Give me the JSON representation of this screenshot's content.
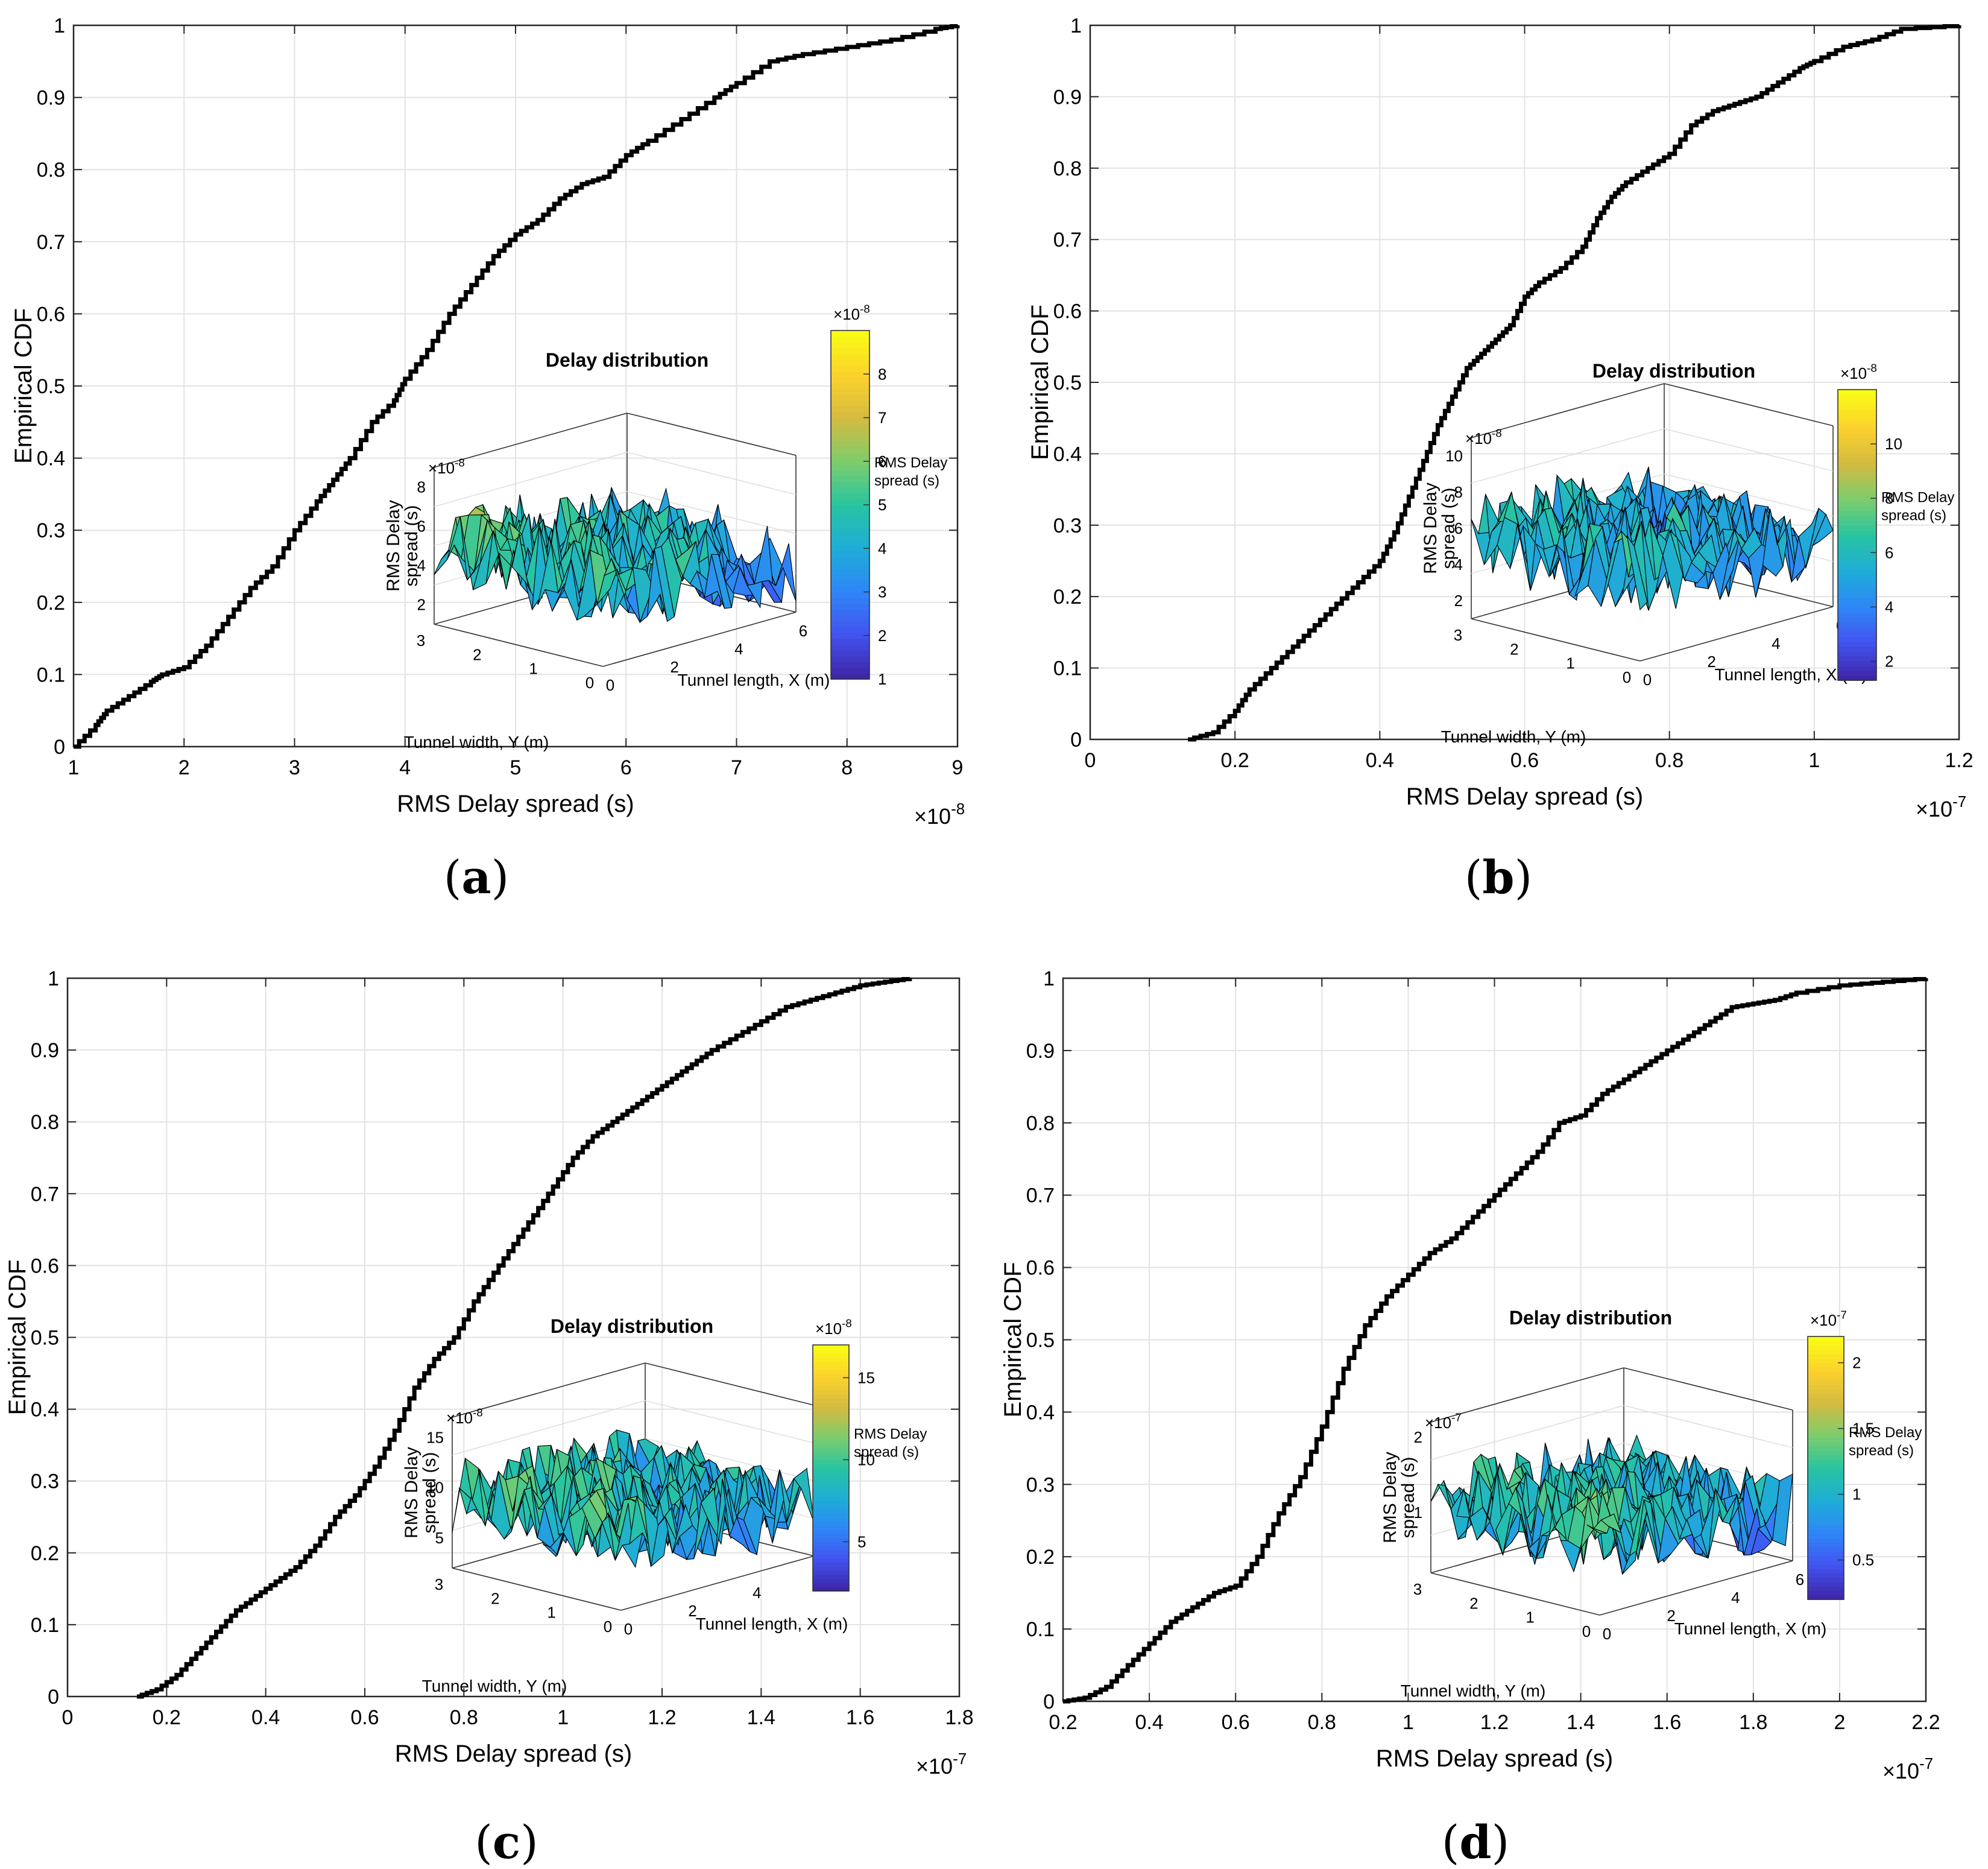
{
  "figure": {
    "captions": [
      {
        "paren_open": "(",
        "letter": "a",
        "paren_close": ")"
      },
      {
        "paren_open": "(",
        "letter": "b",
        "paren_close": ")"
      },
      {
        "paren_open": "(",
        "letter": "c",
        "paren_close": ")"
      },
      {
        "paren_open": "(",
        "letter": "d",
        "paren_close": ")"
      }
    ]
  },
  "colors": {
    "cdf_line": "#000000",
    "grid": "#e3e3e3",
    "axis": "#262626",
    "colormap": [
      "#3e26a8",
      "#4254f0",
      "#2e87f7",
      "#1fadd6",
      "#28c4a1",
      "#7dcd6d",
      "#d3bb41",
      "#fbd12d",
      "#f9fb15"
    ],
    "surface_edge": "#000000"
  },
  "chart_data": [
    {
      "type": "line",
      "panel": "a",
      "title": "",
      "xlabel": "RMS Delay spread (s)",
      "ylabel": "Empirical CDF",
      "x_exponent": "×10",
      "x_exponent_power": "-8",
      "xlim": [
        1,
        9
      ],
      "ylim": [
        0,
        1
      ],
      "x_ticks": [
        1,
        2,
        3,
        4,
        5,
        6,
        7,
        8,
        9
      ],
      "y_ticks": [
        0,
        0.1,
        0.2,
        0.3,
        0.4,
        0.5,
        0.6,
        0.7,
        0.8,
        0.9,
        1
      ],
      "grid": true,
      "series": [
        {
          "name": "CDF",
          "x": [
            1.0,
            1.2,
            1.3,
            1.5,
            1.7,
            1.8,
            2.0,
            2.2,
            2.4,
            2.6,
            2.8,
            3.0,
            3.2,
            3.35,
            3.5,
            3.7,
            3.9,
            4.0,
            4.2,
            4.4,
            4.6,
            4.8,
            5.0,
            5.2,
            5.4,
            5.6,
            5.8,
            6.0,
            6.2,
            6.5,
            6.8,
            7.0,
            7.3,
            7.6,
            8.0,
            8.4,
            8.8,
            9.0
          ],
          "values": [
            0.0,
            0.03,
            0.05,
            0.07,
            0.09,
            0.1,
            0.11,
            0.14,
            0.18,
            0.22,
            0.25,
            0.3,
            0.34,
            0.37,
            0.4,
            0.45,
            0.48,
            0.51,
            0.55,
            0.6,
            0.64,
            0.68,
            0.71,
            0.73,
            0.76,
            0.78,
            0.79,
            0.82,
            0.84,
            0.87,
            0.9,
            0.92,
            0.95,
            0.96,
            0.97,
            0.98,
            0.995,
            1.0
          ]
        }
      ],
      "inset": {
        "title": "Delay distribution",
        "zlabel": "RMS Delay spread (s)",
        "zlabel_lines": [
          "RMS Delay",
          "spread (s)"
        ],
        "xlabel": "Tunnel length, X (m)",
        "ylabel": "Tunnel width, Y (m)",
        "z_exponent": "×10",
        "z_exponent_power": "-8",
        "z_ticks": [
          "2",
          "4",
          "6",
          "8"
        ],
        "z_tick_values": [
          2,
          4,
          6,
          8
        ],
        "zlim": [
          1,
          9
        ],
        "x_ticks": [
          "0",
          "2",
          "4",
          "6"
        ],
        "y_ticks": [
          "0",
          "1",
          "2",
          "3"
        ],
        "colorbar": {
          "label_lines": [
            "RMS Delay",
            "spread (s)"
          ],
          "exponent": "×10",
          "exponent_power": "-8",
          "range": [
            1,
            9
          ],
          "ticks": [
            "1",
            "2",
            "3",
            "4",
            "5",
            "6",
            "7",
            "8"
          ],
          "tick_values": [
            1,
            2,
            3,
            4,
            5,
            6,
            7,
            8
          ]
        }
      }
    },
    {
      "type": "line",
      "panel": "b",
      "title": "",
      "xlabel": "RMS Delay spread (s)",
      "ylabel": "Empirical CDF",
      "x_exponent": "×10",
      "x_exponent_power": "-7",
      "xlim": [
        0,
        1.2
      ],
      "ylim": [
        0,
        1
      ],
      "x_ticks": [
        0,
        0.2,
        0.4,
        0.6,
        0.8,
        1,
        1.2
      ],
      "y_ticks": [
        0,
        0.1,
        0.2,
        0.3,
        0.4,
        0.5,
        0.6,
        0.7,
        0.8,
        0.9,
        1
      ],
      "grid": true,
      "series": [
        {
          "name": "CDF",
          "x": [
            0.135,
            0.17,
            0.2,
            0.22,
            0.25,
            0.28,
            0.31,
            0.34,
            0.37,
            0.4,
            0.42,
            0.44,
            0.46,
            0.48,
            0.5,
            0.52,
            0.54,
            0.56,
            0.58,
            0.6,
            0.62,
            0.65,
            0.68,
            0.7,
            0.72,
            0.74,
            0.77,
            0.8,
            0.83,
            0.86,
            0.89,
            0.92,
            0.95,
            0.98,
            1.0,
            1.04,
            1.08,
            1.12,
            1.2
          ],
          "values": [
            0.0,
            0.01,
            0.04,
            0.07,
            0.1,
            0.13,
            0.16,
            0.19,
            0.22,
            0.25,
            0.29,
            0.34,
            0.39,
            0.44,
            0.48,
            0.52,
            0.54,
            0.56,
            0.58,
            0.62,
            0.64,
            0.66,
            0.69,
            0.73,
            0.76,
            0.78,
            0.8,
            0.82,
            0.86,
            0.88,
            0.89,
            0.9,
            0.92,
            0.94,
            0.95,
            0.97,
            0.98,
            0.995,
            1.0
          ]
        }
      ],
      "inset": {
        "title": "Delay distribution",
        "zlabel": "RMS Delay spread (s)",
        "zlabel_lines": [
          "RMS Delay",
          "spread (s)"
        ],
        "xlabel": "Tunnel length, X (m)",
        "ylabel": "Tunnel width, Y (m)",
        "z_exponent": "×10",
        "z_exponent_power": "-8",
        "z_ticks": [
          "2",
          "4",
          "6",
          "8",
          "10"
        ],
        "z_tick_values": [
          2,
          4,
          6,
          8,
          10
        ],
        "zlim": [
          1,
          11
        ],
        "x_ticks": [
          "0",
          "2",
          "4",
          "6"
        ],
        "y_ticks": [
          "0",
          "1",
          "2",
          "3"
        ],
        "colorbar": {
          "label_lines": [
            "RMS Delay",
            "spread (s)"
          ],
          "exponent": "×10",
          "exponent_power": "-8",
          "range": [
            1.3,
            12
          ],
          "ticks": [
            "2",
            "4",
            "6",
            "8",
            "10"
          ],
          "tick_values": [
            2,
            4,
            6,
            8,
            10
          ]
        }
      }
    },
    {
      "type": "line",
      "panel": "c",
      "title": "",
      "xlabel": "RMS Delay spread (s)",
      "ylabel": "Empirical CDF",
      "x_exponent": "×10",
      "x_exponent_power": "-7",
      "xlim": [
        0,
        1.8
      ],
      "ylim": [
        0,
        1
      ],
      "x_ticks": [
        0,
        0.2,
        0.4,
        0.6,
        0.8,
        1,
        1.2,
        1.4,
        1.6,
        1.8
      ],
      "y_ticks": [
        0,
        0.1,
        0.2,
        0.3,
        0.4,
        0.5,
        0.6,
        0.7,
        0.8,
        0.9,
        1
      ],
      "grid": true,
      "series": [
        {
          "name": "CDF",
          "x": [
            0.14,
            0.18,
            0.22,
            0.26,
            0.3,
            0.34,
            0.38,
            0.42,
            0.46,
            0.5,
            0.54,
            0.58,
            0.62,
            0.66,
            0.7,
            0.74,
            0.78,
            0.82,
            0.86,
            0.9,
            0.94,
            0.98,
            1.02,
            1.06,
            1.1,
            1.14,
            1.18,
            1.22,
            1.26,
            1.3,
            1.35,
            1.4,
            1.45,
            1.5,
            1.55,
            1.6,
            1.65,
            1.7
          ],
          "values": [
            0.0,
            0.01,
            0.03,
            0.06,
            0.09,
            0.12,
            0.14,
            0.16,
            0.18,
            0.21,
            0.25,
            0.28,
            0.32,
            0.37,
            0.43,
            0.47,
            0.5,
            0.55,
            0.59,
            0.63,
            0.67,
            0.71,
            0.75,
            0.78,
            0.8,
            0.82,
            0.84,
            0.86,
            0.88,
            0.9,
            0.92,
            0.94,
            0.96,
            0.97,
            0.98,
            0.99,
            0.995,
            1.0
          ]
        }
      ],
      "inset": {
        "title": "Delay distribution",
        "zlabel": "RMS Delay spread (s)",
        "zlabel_lines": [
          "RMS Delay",
          "spread (s)"
        ],
        "xlabel": "Tunnel length, X (m)",
        "ylabel": "Tunnel width, Y (m)",
        "z_exponent": "×10",
        "z_exponent_power": "-8",
        "z_ticks": [
          "5",
          "10",
          "15"
        ],
        "z_tick_values": [
          5,
          10,
          15
        ],
        "zlim": [
          2,
          17
        ],
        "x_ticks": [
          "0",
          "2",
          "4",
          "6"
        ],
        "y_ticks": [
          "0",
          "1",
          "2",
          "3"
        ],
        "colorbar": {
          "label_lines": [
            "RMS Delay",
            "spread (s)"
          ],
          "exponent": "×10",
          "exponent_power": "-8",
          "range": [
            2,
            17
          ],
          "ticks": [
            "5",
            "10",
            "15"
          ],
          "tick_values": [
            5,
            10,
            15
          ]
        }
      }
    },
    {
      "type": "line",
      "panel": "d",
      "title": "",
      "xlabel": "RMS Delay spread (s)",
      "ylabel": "Empirical CDF",
      "x_exponent": "×10",
      "x_exponent_power": "-7",
      "xlim": [
        0.2,
        2.2
      ],
      "ylim": [
        0,
        1
      ],
      "x_ticks": [
        0.2,
        0.4,
        0.6,
        0.8,
        1,
        1.2,
        1.4,
        1.6,
        1.8,
        2,
        2.2
      ],
      "y_ticks": [
        0,
        0.1,
        0.2,
        0.3,
        0.4,
        0.5,
        0.6,
        0.7,
        0.8,
        0.9,
        1
      ],
      "grid": true,
      "series": [
        {
          "name": "CDF",
          "x": [
            0.2,
            0.25,
            0.3,
            0.35,
            0.4,
            0.45,
            0.5,
            0.55,
            0.6,
            0.65,
            0.7,
            0.75,
            0.8,
            0.85,
            0.9,
            0.95,
            1.0,
            1.05,
            1.1,
            1.15,
            1.2,
            1.25,
            1.3,
            1.35,
            1.4,
            1.45,
            1.5,
            1.55,
            1.6,
            1.65,
            1.7,
            1.75,
            1.8,
            1.85,
            1.9,
            2.0,
            2.1,
            2.2
          ],
          "values": [
            0.0,
            0.005,
            0.02,
            0.05,
            0.08,
            0.11,
            0.13,
            0.15,
            0.16,
            0.2,
            0.26,
            0.31,
            0.38,
            0.46,
            0.52,
            0.56,
            0.59,
            0.62,
            0.64,
            0.67,
            0.7,
            0.73,
            0.76,
            0.8,
            0.81,
            0.84,
            0.86,
            0.88,
            0.9,
            0.92,
            0.94,
            0.96,
            0.965,
            0.97,
            0.98,
            0.99,
            0.995,
            1.0
          ]
        }
      ],
      "inset": {
        "title": "Delay distribution",
        "zlabel": "RMS Delay spread (s)",
        "zlabel_lines": [
          "RMS Delay",
          "spread (s)"
        ],
        "xlabel": "Tunnel length, X (m)",
        "ylabel": "Tunnel width, Y (m)",
        "z_exponent": "×10",
        "z_exponent_power": "-7",
        "z_ticks": [
          "1",
          "2"
        ],
        "z_tick_values": [
          1,
          2
        ],
        "zlim": [
          0.2,
          2.2
        ],
        "x_ticks": [
          "0",
          "2",
          "4",
          "6"
        ],
        "y_ticks": [
          "0",
          "1",
          "2",
          "3"
        ],
        "colorbar": {
          "label_lines": [
            "RMS Delay",
            "spread (s)"
          ],
          "exponent": "×10",
          "exponent_power": "-7",
          "range": [
            0.2,
            2.2
          ],
          "ticks": [
            "0.5",
            "1",
            "1.5",
            "2"
          ],
          "tick_values": [
            0.5,
            1,
            1.5,
            2
          ]
        }
      }
    }
  ]
}
